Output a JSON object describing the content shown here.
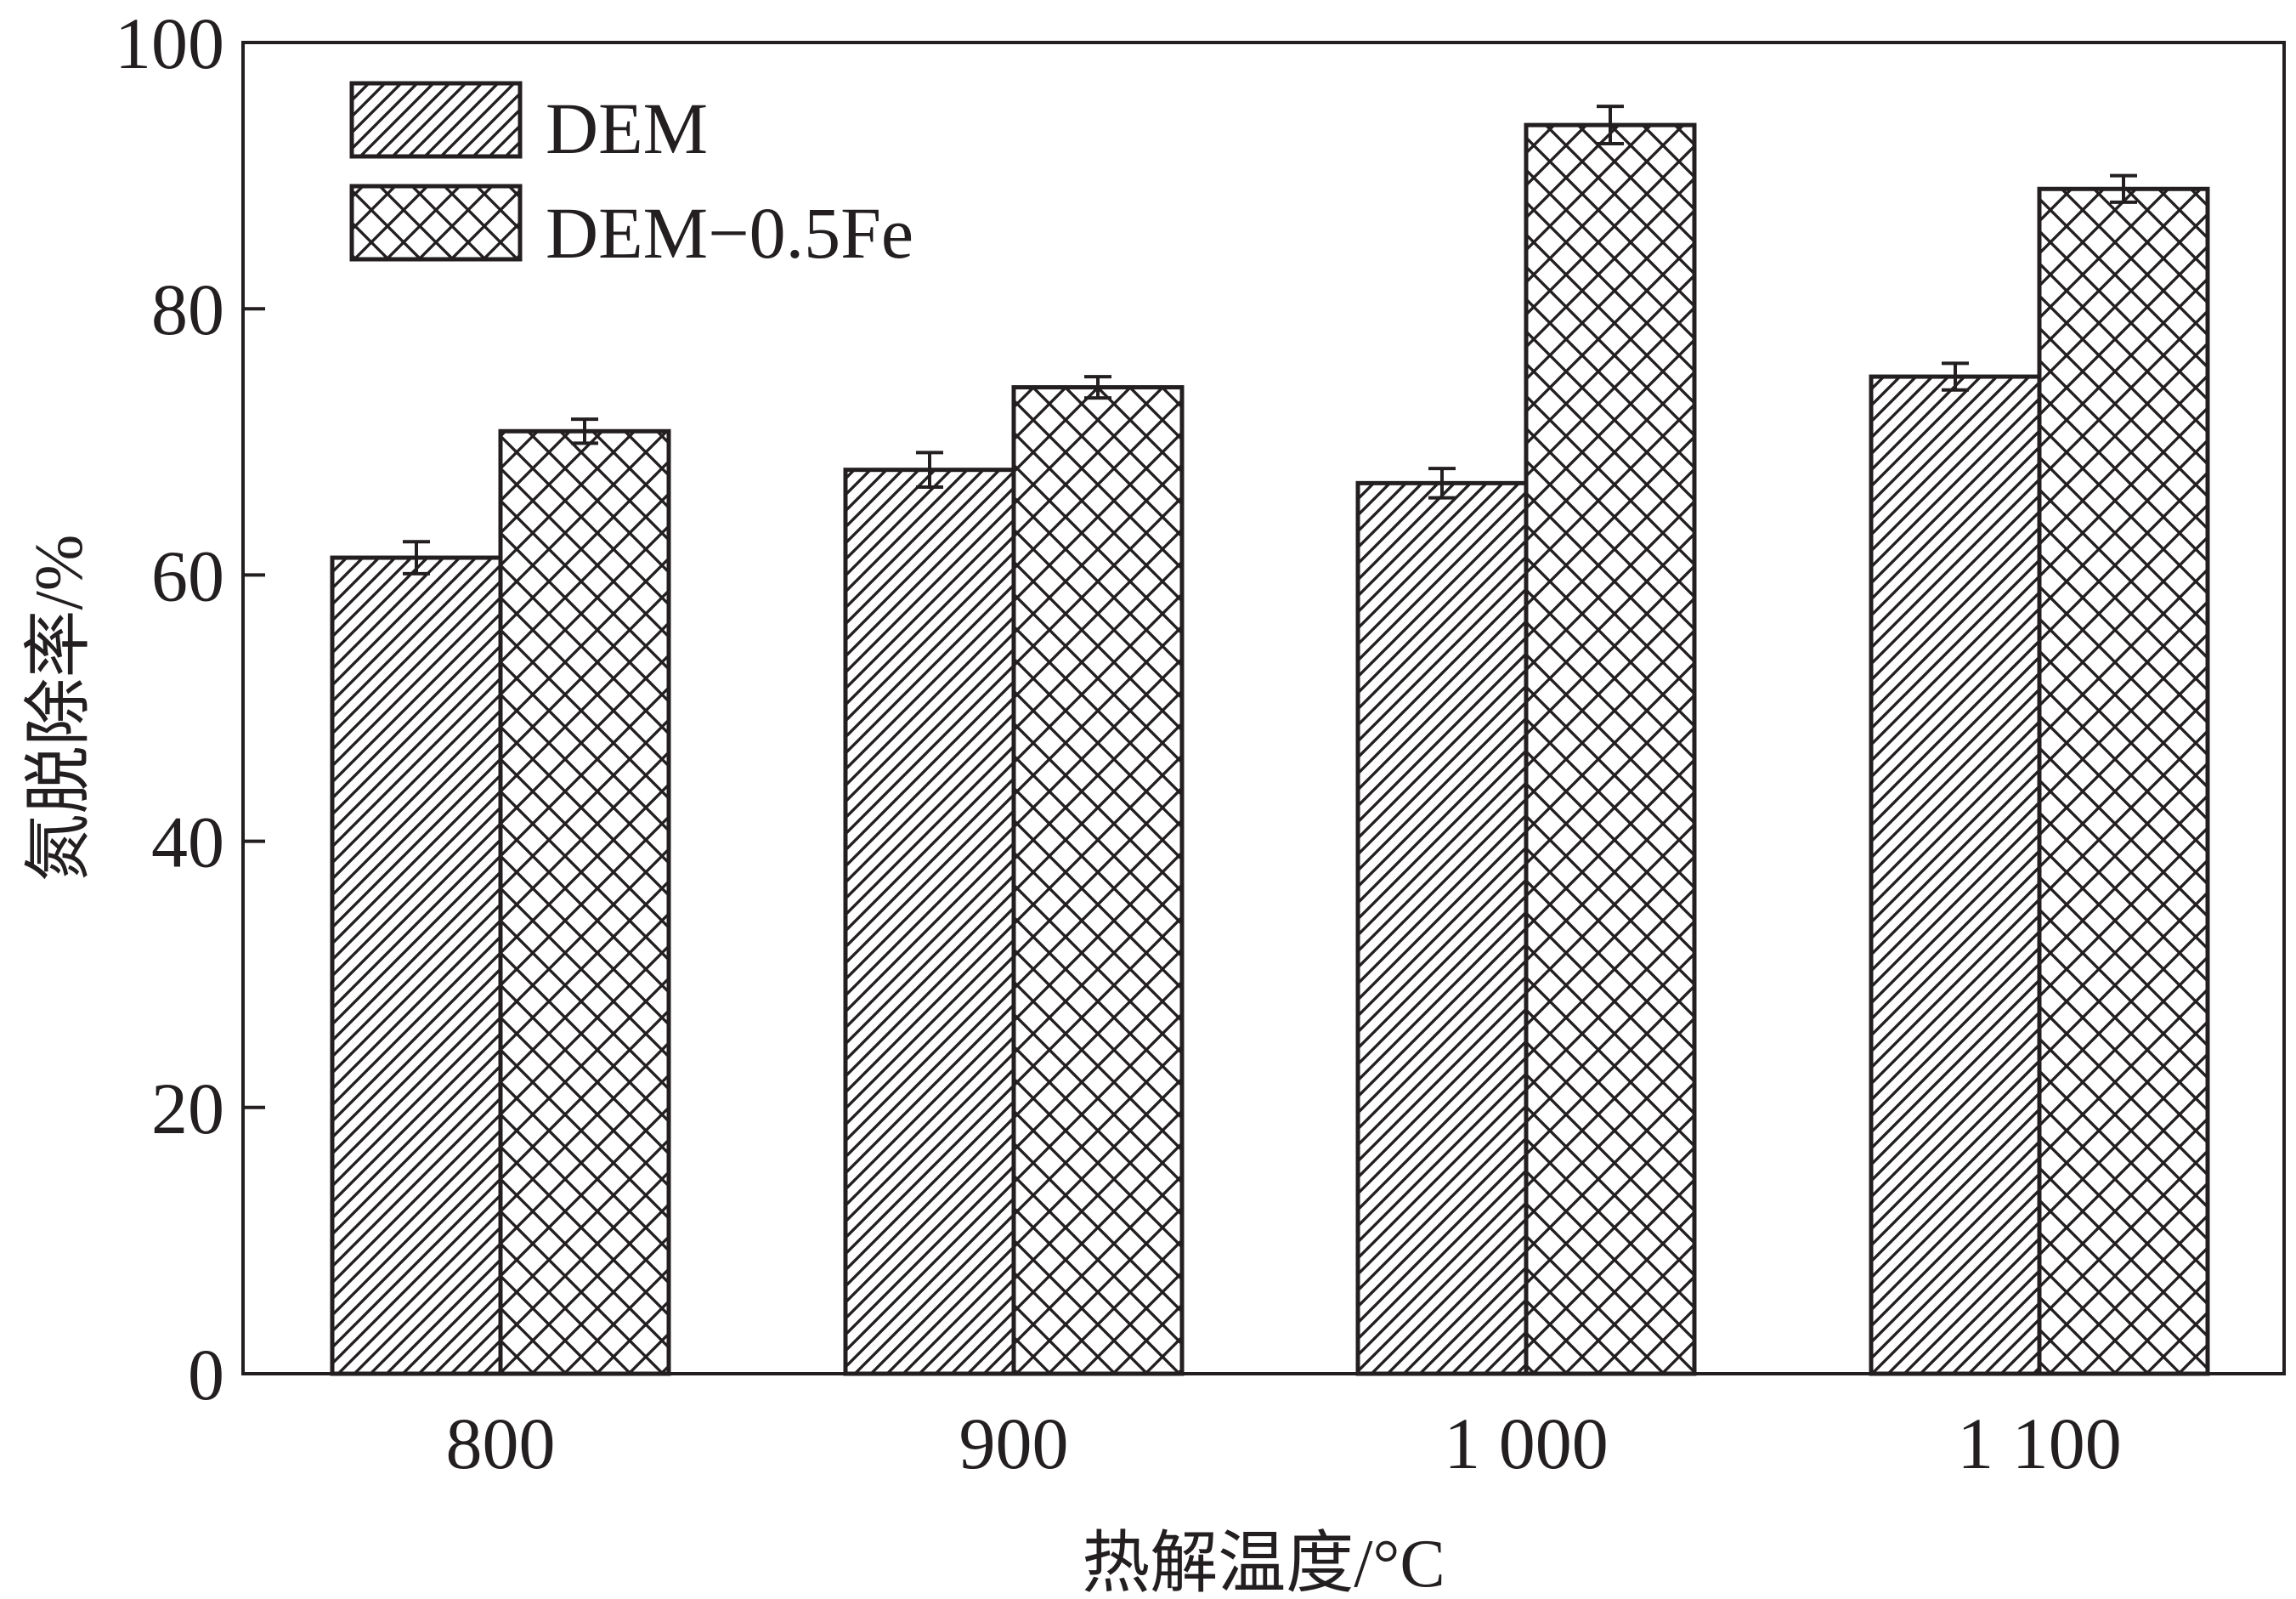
{
  "chart_data": {
    "type": "bar",
    "title": "",
    "xlabel": "热解温度/°C",
    "ylabel": "氮脱除率/%",
    "categories": [
      "800",
      "900",
      "1 000",
      "1 100"
    ],
    "series": [
      {
        "name": "DEM",
        "pattern": "diagonal-hatch",
        "values": [
          61.3,
          67.9,
          66.9,
          74.9
        ],
        "errors": [
          1.2,
          1.3,
          1.1,
          1.0
        ]
      },
      {
        "name": "DEM−0.5Fe",
        "pattern": "cross-hatch",
        "values": [
          70.8,
          74.1,
          93.8,
          89.0
        ],
        "errors": [
          0.9,
          0.8,
          1.4,
          1.0
        ]
      }
    ],
    "ylim": [
      0,
      100
    ],
    "yticks": [
      "0",
      "20",
      "40",
      "60",
      "80",
      "100"
    ],
    "grid": false,
    "legend_position": "top-left",
    "colors": {
      "stroke": "#231f20",
      "fill": "#ffffff"
    }
  }
}
